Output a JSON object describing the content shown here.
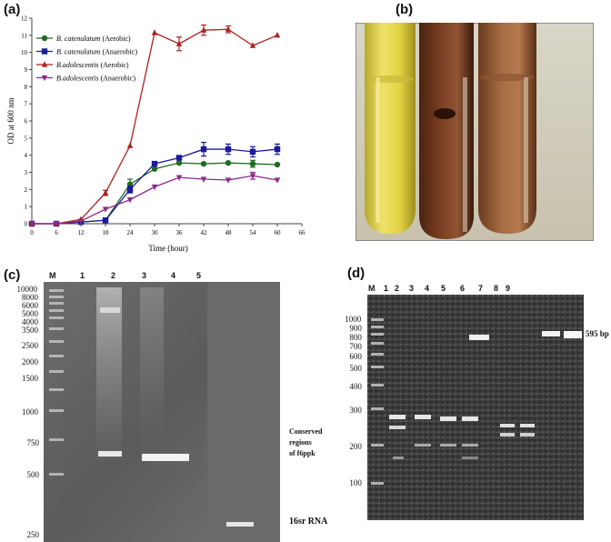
{
  "panels": {
    "a": {
      "letter": "(a)"
    },
    "b": {
      "letter": "(b)"
    },
    "c": {
      "letter": "(c)"
    },
    "d": {
      "letter": "(d)"
    }
  },
  "chart_data": {
    "type": "line",
    "x": [
      0,
      6,
      12,
      18,
      24,
      30,
      36,
      42,
      48,
      54,
      60
    ],
    "xlabel": "Time (hour)",
    "ylabel": "OD at 600 nm",
    "xlim": [
      0,
      66
    ],
    "ylim": [
      0,
      12
    ],
    "xticks": [
      0,
      6,
      12,
      18,
      24,
      30,
      36,
      42,
      48,
      54,
      60,
      66
    ],
    "yticks": [
      0,
      1,
      2,
      3,
      4,
      5,
      6,
      7,
      8,
      9,
      10,
      11,
      12
    ],
    "legend_placement": "top-left",
    "series": [
      {
        "name": "B. catenulatum (Aerobic)",
        "name_italic": "B. catenulatum",
        "name_suffix": " (Aerobic)",
        "color": "#1f6b1f",
        "marker": "circle",
        "values": [
          0,
          0,
          0.1,
          0.2,
          2.3,
          3.2,
          3.55,
          3.5,
          3.55,
          3.5,
          3.45
        ],
        "errors": [
          0,
          0,
          0,
          0,
          0.3,
          0,
          0,
          0,
          0,
          0.2,
          0
        ]
      },
      {
        "name": "B. catenulatum (Anaerobic)",
        "name_italic": "B. catenulatum",
        "name_suffix": " (Anaerobic)",
        "color": "#1a1a9c",
        "marker": "square",
        "values": [
          0,
          0,
          0.1,
          0.2,
          2.0,
          3.5,
          3.85,
          4.35,
          4.35,
          4.2,
          4.35
        ],
        "errors": [
          0,
          0,
          0,
          0,
          0.2,
          0,
          0.1,
          0.4,
          0.3,
          0.3,
          0.3
        ]
      },
      {
        "name": "B.adolescentis (Aerobic)",
        "name_italic": "B.adolescentis",
        "name_suffix": " (Aerobic)",
        "color": "#b01f1f",
        "marker": "triangle-up",
        "values": [
          0,
          0,
          0.25,
          1.8,
          4.55,
          11.15,
          10.5,
          11.3,
          11.35,
          10.4,
          11.0
        ],
        "errors": [
          0,
          0,
          0,
          0.15,
          0,
          0,
          0.4,
          0.3,
          0.2,
          0,
          0
        ]
      },
      {
        "name": "B.adolescentis (Anaerobic)",
        "name_italic": "B.adolescentis",
        "name_suffix": " (Anaerobic)",
        "color": "#8b2a8b",
        "marker": "triangle-down",
        "values": [
          0,
          0,
          0.15,
          0.85,
          1.4,
          2.15,
          2.7,
          2.6,
          2.55,
          2.8,
          2.55
        ],
        "errors": [
          0,
          0,
          0,
          0,
          0,
          0,
          0,
          0,
          0,
          0.2,
          0
        ]
      }
    ]
  },
  "gel_c": {
    "marker_label": "M",
    "lane_labels": [
      "1",
      "2",
      "3",
      "4",
      "5"
    ],
    "ladder_labels": [
      "10000",
      "8000",
      "6000",
      "5000",
      "4000",
      "3500",
      "2500",
      "2000",
      "1500",
      "1000",
      "750",
      "500",
      "250"
    ],
    "annotation_16s": "16sr RNA",
    "annotation_conserved": [
      "Conserved",
      "regions",
      "of f6ppk"
    ]
  },
  "gel_d": {
    "marker_label": "M",
    "lane_labels": [
      "1",
      "2",
      "3",
      "4",
      "5",
      "6",
      "7",
      "8",
      "9"
    ],
    "ladder_labels": [
      "1000",
      "900",
      "800",
      "700",
      "600",
      "500",
      "400",
      "300",
      "200",
      "100"
    ],
    "annotation_595": "595 bp"
  }
}
